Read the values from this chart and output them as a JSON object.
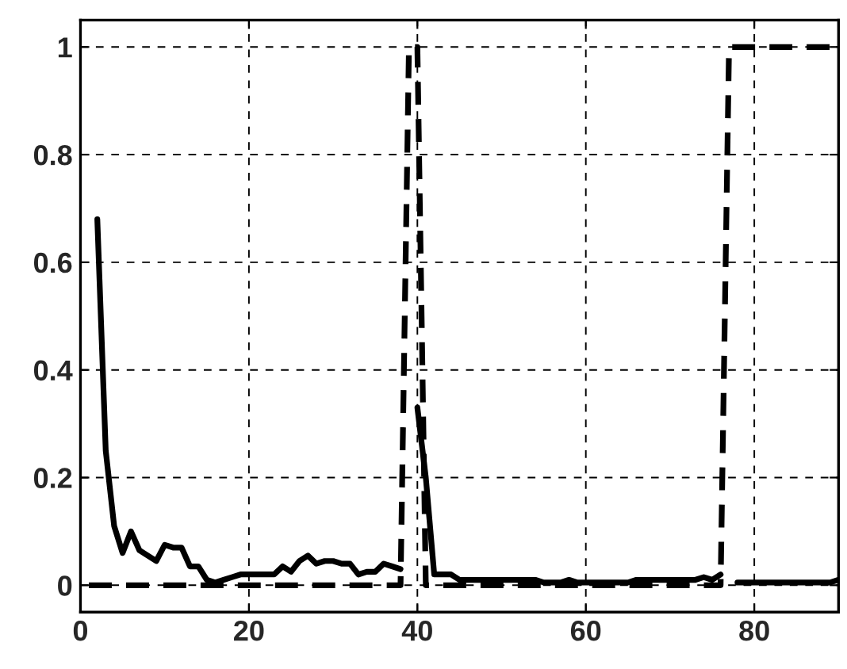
{
  "chart_data": {
    "type": "line",
    "xlim": [
      0,
      90
    ],
    "ylim": [
      -0.05,
      1.05
    ],
    "xticks": [
      0,
      20,
      40,
      60,
      80
    ],
    "yticks": [
      0,
      0.2,
      0.4,
      0.6,
      0.8,
      1
    ],
    "grid": true,
    "marker": "none",
    "series": [
      {
        "color": "#000000",
        "line_style": "solid",
        "x": [
          2,
          3,
          4,
          5,
          6,
          7,
          8,
          9,
          10,
          11,
          12,
          13,
          14,
          15,
          16,
          17,
          18,
          19,
          20,
          21,
          22,
          23,
          24,
          25,
          26,
          27,
          28,
          29,
          30,
          31,
          32,
          33,
          34,
          35,
          36,
          37,
          38,
          39,
          40,
          41,
          42,
          43,
          44,
          45,
          46,
          47,
          48,
          49,
          50,
          51,
          52,
          53,
          54,
          55,
          56,
          57,
          58,
          59,
          60,
          61,
          62,
          63,
          64,
          65,
          66,
          67,
          68,
          69,
          70,
          71,
          72,
          73,
          74,
          75,
          76,
          77,
          78,
          79,
          80,
          81,
          82,
          83,
          84,
          85,
          86,
          87,
          88,
          89,
          90
        ],
        "values": [
          0.68,
          0.25,
          0.11,
          0.06,
          0.1,
          0.065,
          0.055,
          0.045,
          0.075,
          0.07,
          0.07,
          0.035,
          0.035,
          0.01,
          0.005,
          0.01,
          0.015,
          0.02,
          0.02,
          0.02,
          0.02,
          0.02,
          0.035,
          0.025,
          0.045,
          0.055,
          0.04,
          0.045,
          0.045,
          0.04,
          0.04,
          0.02,
          0.025,
          0.025,
          0.04,
          0.035,
          0.03,
          null,
          0.33,
          0.2,
          0.02,
          0.02,
          0.02,
          0.01,
          0.01,
          0.01,
          0.01,
          0.01,
          0.01,
          0.01,
          0.01,
          0.01,
          0.01,
          0.005,
          0.005,
          0.005,
          0.01,
          0.005,
          0.005,
          0.005,
          0.005,
          0.005,
          0.005,
          0.005,
          0.01,
          0.01,
          0.01,
          0.01,
          0.01,
          0.01,
          0.01,
          0.01,
          0.015,
          0.01,
          0.02,
          null,
          0.005,
          0.005,
          0.005,
          0.005,
          0.005,
          0.005,
          0.005,
          0.005,
          0.005,
          0.005,
          0.005,
          0.005,
          0.01
        ]
      },
      {
        "color": "#000000",
        "line_style": "dashed",
        "x": [
          1,
          38,
          39,
          40,
          41,
          76,
          77,
          90
        ],
        "values": [
          0,
          0,
          1,
          1,
          0,
          0,
          1,
          1
        ]
      }
    ]
  }
}
